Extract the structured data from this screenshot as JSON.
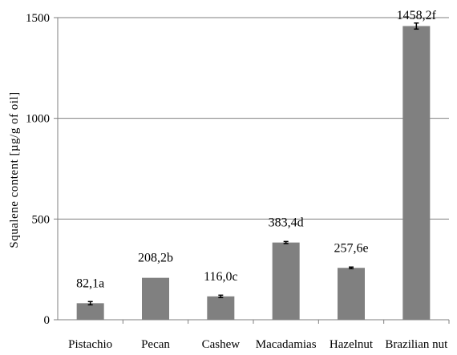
{
  "chart_data": {
    "type": "bar",
    "title": "",
    "xlabel": "",
    "ylabel": "Squalene content [µg/g of oil]",
    "ylim": [
      0,
      1500
    ],
    "yticks": [
      0,
      500,
      1000,
      1500
    ],
    "grid": true,
    "legend": "none",
    "categories": [
      "Pistachio",
      "Pecan",
      "Cashew",
      "Macadamias",
      "Hazelnut",
      "Brazilian nut"
    ],
    "values": [
      82.1,
      208.2,
      116.0,
      383.4,
      257.6,
      1458.2
    ],
    "data_labels": [
      "82,1a",
      "208,2b",
      "116,0c",
      "383,4d",
      "257,6e",
      "1458,2f"
    ],
    "error": [
      8,
      0,
      6,
      5,
      4,
      15
    ],
    "colors": {
      "bar": "#808080",
      "grid": "#7f7f7f",
      "axis": "#7f7f7f",
      "error_bar": "#000000"
    }
  }
}
